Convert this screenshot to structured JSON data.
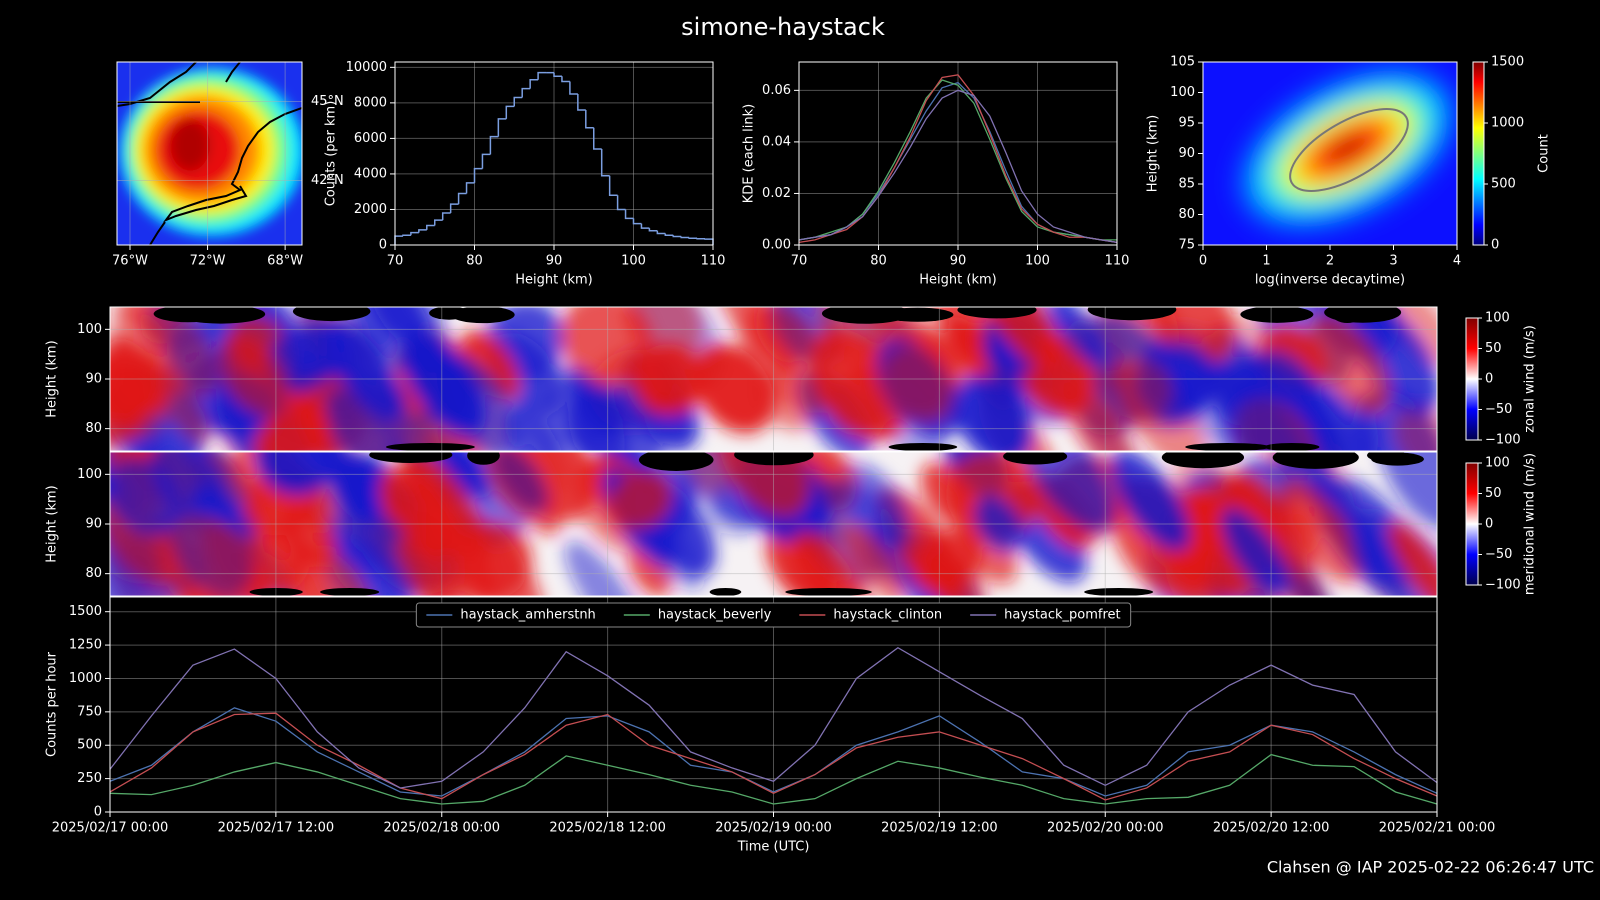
{
  "title": "simone-haystack",
  "footer": "Clahsen @ IAP 2025-02-22 06:26:47 UTC",
  "chart_data": [
    {
      "type": "map",
      "xlim": [
        -76.67,
        -67.13
      ],
      "xticks": [
        {
          "value": -76,
          "label": "76°W"
        },
        {
          "value": -72,
          "label": "72°W"
        },
        {
          "value": -68,
          "label": "68°W"
        }
      ],
      "ylim": [
        39.55,
        46.5
      ],
      "yticks": [
        {
          "value": 42,
          "label": "42°N"
        },
        {
          "value": 45,
          "label": "45°N"
        }
      ],
      "grid": true
    },
    {
      "type": "histogram",
      "xlabel": "Height (km)",
      "ylabel": "Counts (per km)",
      "color": "#7b9ee0",
      "bins": [
        70,
        71,
        72,
        73,
        74,
        75,
        76,
        77,
        78,
        79,
        80,
        81,
        82,
        83,
        84,
        85,
        86,
        87,
        88,
        89,
        90,
        91,
        92,
        93,
        94,
        95,
        96,
        97,
        98,
        99,
        100,
        101,
        102,
        103,
        104,
        105,
        106,
        107,
        108,
        109,
        110
      ],
      "counts": [
        500,
        550,
        700,
        850,
        1100,
        1400,
        1800,
        2300,
        2900,
        3500,
        4300,
        5100,
        6100,
        7100,
        7800,
        8300,
        8800,
        9300,
        9700,
        9700,
        9500,
        9200,
        8500,
        7600,
        6600,
        5400,
        3900,
        2800,
        2000,
        1500,
        1200,
        950,
        800,
        650,
        550,
        480,
        420,
        380,
        350,
        330
      ],
      "xlim": [
        70,
        110
      ],
      "xticks": [
        70,
        80,
        90,
        100,
        110
      ],
      "ylim": [
        0,
        10300
      ],
      "yticks": [
        0,
        2000,
        4000,
        6000,
        8000,
        10000
      ],
      "grid": true
    },
    {
      "type": "line",
      "xlabel": "Height (km)",
      "ylabel": "KDE (each link)",
      "x": [
        70,
        72,
        74,
        76,
        78,
        80,
        82,
        84,
        86,
        88,
        90,
        92,
        94,
        96,
        98,
        100,
        102,
        104,
        106,
        108,
        110
      ],
      "series": [
        {
          "color": "#4c72b0",
          "values": [
            0.002,
            0.003,
            0.004,
            0.007,
            0.012,
            0.02,
            0.03,
            0.041,
            0.052,
            0.061,
            0.063,
            0.057,
            0.044,
            0.029,
            0.015,
            0.008,
            0.005,
            0.004,
            0.003,
            0.002,
            0.001
          ]
        },
        {
          "color": "#55a868",
          "values": [
            0.002,
            0.003,
            0.005,
            0.007,
            0.012,
            0.021,
            0.032,
            0.044,
            0.057,
            0.064,
            0.062,
            0.055,
            0.041,
            0.026,
            0.013,
            0.007,
            0.005,
            0.004,
            0.003,
            0.002,
            0.002
          ]
        },
        {
          "color": "#c44e52",
          "values": [
            0.001,
            0.002,
            0.004,
            0.006,
            0.011,
            0.019,
            0.03,
            0.042,
            0.056,
            0.065,
            0.066,
            0.058,
            0.043,
            0.027,
            0.014,
            0.008,
            0.005,
            0.003,
            0.003,
            0.002,
            0.001
          ]
        },
        {
          "color": "#8172b2",
          "values": [
            0.002,
            0.003,
            0.004,
            0.007,
            0.011,
            0.019,
            0.028,
            0.038,
            0.049,
            0.057,
            0.06,
            0.058,
            0.05,
            0.036,
            0.021,
            0.012,
            0.007,
            0.005,
            0.003,
            0.002,
            0.001
          ]
        }
      ],
      "xlim": [
        70,
        110
      ],
      "xticks": [
        70,
        80,
        90,
        100,
        110
      ],
      "ylim": [
        0,
        0.071
      ],
      "yticks": [
        {
          "value": 0,
          "label": "0.00"
        },
        0.02,
        0.04,
        0.06
      ],
      "grid": true
    },
    {
      "type": "heatmap",
      "xlabel": "log(inverse decaytime)",
      "ylabel": "Height (km)",
      "xlim": [
        0,
        4
      ],
      "xticks": [
        0,
        1,
        2,
        3,
        4
      ],
      "ylim": [
        75,
        105
      ],
      "yticks": [
        75,
        80,
        85,
        90,
        95,
        100,
        105
      ],
      "clim": [
        0,
        1500
      ],
      "cticks": [
        0,
        500,
        1000,
        1500
      ],
      "clabel": "Count",
      "colormap": "jet"
    },
    {
      "type": "image",
      "ylabel": "Height (km)",
      "ylim": [
        75.5,
        104.5
      ],
      "yticks": [
        80,
        90,
        100
      ],
      "grid": true,
      "clim": [
        -100,
        100
      ],
      "cticks": [
        {
          "value": -100,
          "label": "−100"
        },
        {
          "value": -50,
          "label": "−50"
        },
        0,
        50,
        100
      ],
      "clabel": "zonal wind (m/s)",
      "colormap": "seismic"
    },
    {
      "type": "image",
      "ylabel": "Height (km)",
      "ylim": [
        75.5,
        104.5
      ],
      "yticks": [
        80,
        90,
        100
      ],
      "grid": true,
      "clim": [
        -100,
        100
      ],
      "cticks": [
        {
          "value": -100,
          "label": "−100"
        },
        {
          "value": -50,
          "label": "−50"
        },
        0,
        50,
        100
      ],
      "clabel": "meridional wind (m/s)",
      "colormap": "seismic"
    },
    {
      "type": "line",
      "xlabel": "Time (UTC)",
      "ylabel": "Counts per hour",
      "legend": "upper center",
      "x": [
        "2025-02-17 00:00",
        "2025-02-17 03:00",
        "2025-02-17 06:00",
        "2025-02-17 09:00",
        "2025-02-17 12:00",
        "2025-02-17 15:00",
        "2025-02-17 18:00",
        "2025-02-17 21:00",
        "2025-02-18 00:00",
        "2025-02-18 03:00",
        "2025-02-18 06:00",
        "2025-02-18 09:00",
        "2025-02-18 12:00",
        "2025-02-18 15:00",
        "2025-02-18 18:00",
        "2025-02-18 21:00",
        "2025-02-19 00:00",
        "2025-02-19 03:00",
        "2025-02-19 06:00",
        "2025-02-19 09:00",
        "2025-02-19 12:00",
        "2025-02-19 15:00",
        "2025-02-19 18:00",
        "2025-02-19 21:00",
        "2025-02-20 00:00",
        "2025-02-20 03:00",
        "2025-02-20 06:00",
        "2025-02-20 09:00",
        "2025-02-20 12:00",
        "2025-02-20 15:00",
        "2025-02-20 18:00",
        "2025-02-20 21:00",
        "2025-02-21 00:00"
      ],
      "series": [
        {
          "name": "haystack_amherstnh",
          "color": "#4c72b0",
          "values": [
            230,
            350,
            600,
            780,
            680,
            450,
            300,
            150,
            120,
            280,
            450,
            700,
            720,
            600,
            350,
            300,
            150,
            280,
            500,
            600,
            720,
            520,
            300,
            250,
            120,
            200,
            450,
            500,
            650,
            600,
            450,
            280,
            140
          ]
        },
        {
          "name": "haystack_beverly",
          "color": "#55a868",
          "values": [
            140,
            130,
            200,
            300,
            370,
            300,
            200,
            100,
            60,
            80,
            200,
            420,
            350,
            280,
            200,
            150,
            60,
            100,
            250,
            380,
            330,
            260,
            200,
            100,
            60,
            100,
            110,
            200,
            430,
            350,
            340,
            150,
            60
          ]
        },
        {
          "name": "haystack_clinton",
          "color": "#c44e52",
          "values": [
            150,
            330,
            600,
            730,
            740,
            500,
            350,
            180,
            100,
            280,
            430,
            650,
            730,
            500,
            400,
            300,
            140,
            280,
            480,
            560,
            600,
            500,
            400,
            250,
            90,
            180,
            380,
            450,
            650,
            580,
            400,
            250,
            120
          ]
        },
        {
          "name": "haystack_pomfret",
          "color": "#8172b2",
          "values": [
            320,
            720,
            1100,
            1220,
            1000,
            600,
            330,
            180,
            230,
            450,
            780,
            1200,
            1020,
            800,
            450,
            330,
            230,
            500,
            1000,
            1230,
            1050,
            870,
            700,
            350,
            200,
            350,
            750,
            950,
            1100,
            950,
            880,
            450,
            220
          ]
        }
      ],
      "xlim": [
        "2025-02-17 00:00",
        "2025-02-21 00:00"
      ],
      "xticks": [
        {
          "value": "2025-02-17 00:00",
          "label": "2025/02/17 00:00"
        },
        {
          "value": "2025-02-17 12:00",
          "label": "2025/02/17 12:00"
        },
        {
          "value": "2025-02-18 00:00",
          "label": "2025/02/18 00:00"
        },
        {
          "value": "2025-02-18 12:00",
          "label": "2025/02/18 12:00"
        },
        {
          "value": "2025-02-19 00:00",
          "label": "2025/02/19 00:00"
        },
        {
          "value": "2025-02-19 12:00",
          "label": "2025/02/19 12:00"
        },
        {
          "value": "2025-02-20 00:00",
          "label": "2025/02/20 00:00"
        },
        {
          "value": "2025-02-20 12:00",
          "label": "2025/02/20 12:00"
        },
        {
          "value": "2025-02-21 00:00",
          "label": "2025/02/21 00:00"
        }
      ],
      "ylim": [
        0,
        1610
      ],
      "yticks": [
        0,
        250,
        500,
        750,
        1000,
        1250,
        1500
      ],
      "grid": true
    }
  ]
}
